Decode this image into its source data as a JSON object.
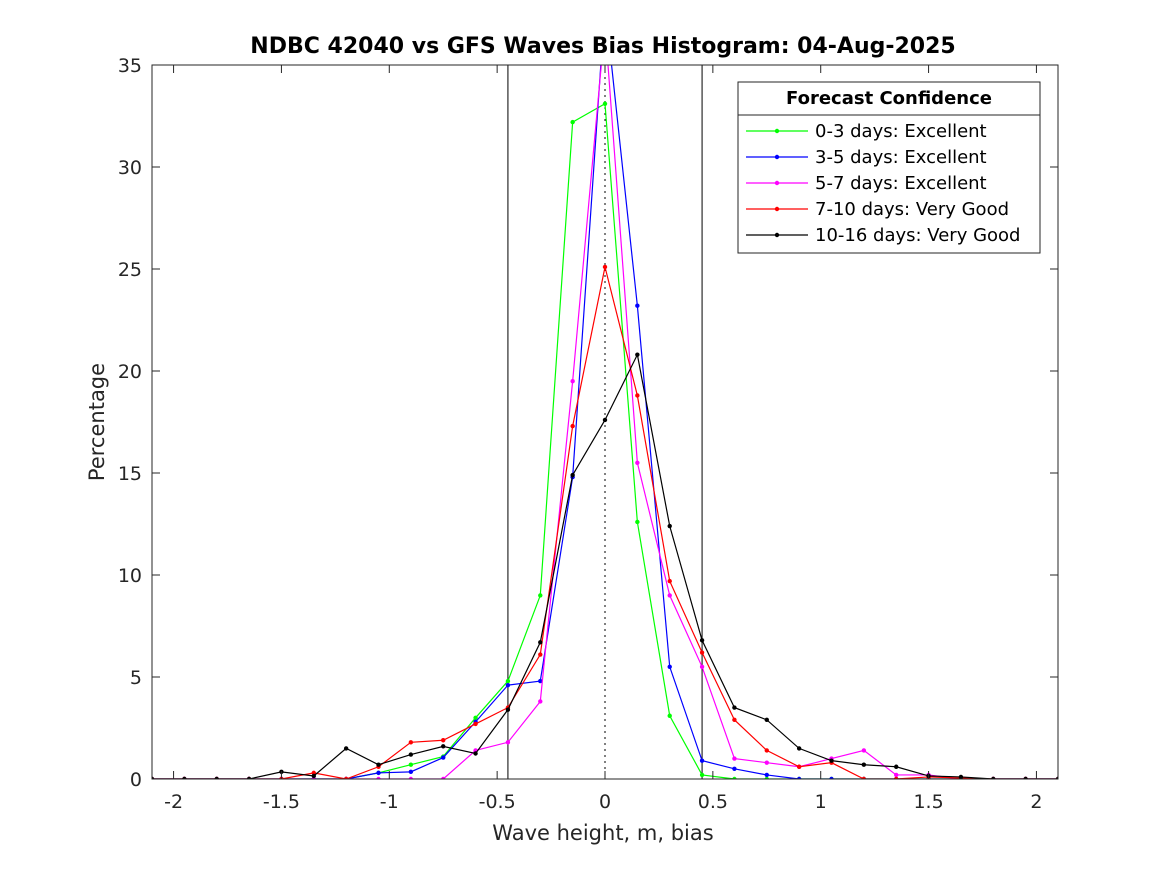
{
  "chart_data": {
    "type": "line",
    "title": "NDBC 42040 vs GFS Waves Bias Histogram: 04-Aug-2025",
    "xlabel": "Wave height, m, bias",
    "ylabel": "Percentage",
    "xlim": [
      -2.1,
      2.1
    ],
    "ylim": [
      0,
      35
    ],
    "xticks": [
      -2,
      -1.5,
      -1,
      -0.5,
      0,
      0.5,
      1,
      1.5,
      2
    ],
    "xtick_labels": [
      "-2",
      "-1.5",
      "-1",
      "-0.5",
      "0",
      "0.5",
      "1",
      "1.5",
      "2"
    ],
    "yticks": [
      0,
      5,
      10,
      15,
      20,
      25,
      30,
      35
    ],
    "ytick_labels": [
      "0",
      "5",
      "10",
      "15",
      "20",
      "25",
      "30",
      "35"
    ],
    "vlines": [
      -0.45,
      0.45
    ],
    "zero_line": 0,
    "grid": false,
    "legend": {
      "title": "Forecast Confidence",
      "placement": "top-right"
    },
    "x": [
      -2.1,
      -1.95,
      -1.8,
      -1.65,
      -1.5,
      -1.35,
      -1.2,
      -1.05,
      -0.9,
      -0.75,
      -0.6,
      -0.45,
      -0.3,
      -0.15,
      0,
      0.15,
      0.3,
      0.45,
      0.6,
      0.75,
      0.9,
      1.05,
      1.2,
      1.35,
      1.5,
      1.65,
      1.8,
      1.95,
      2.1
    ],
    "series": [
      {
        "name": "0-3 days: Excellent",
        "color": "#00ff00",
        "values": [
          0,
          0,
          0,
          0,
          0,
          0,
          0,
          0.3,
          0.7,
          1.1,
          3.0,
          4.8,
          9.0,
          32.2,
          33.1,
          12.6,
          3.1,
          0.2,
          0,
          0,
          0,
          0,
          0,
          0,
          0,
          0,
          0,
          0,
          0
        ]
      },
      {
        "name": "3-5 days: Excellent",
        "color": "#0000ff",
        "values": [
          0,
          0,
          0,
          0,
          0,
          0,
          0,
          0.3,
          0.35,
          1.05,
          2.8,
          4.6,
          4.8,
          14.8,
          38.0,
          23.2,
          5.5,
          0.9,
          0.5,
          0.2,
          0,
          0,
          0,
          0,
          0,
          0,
          0,
          0,
          0
        ]
      },
      {
        "name": "5-7 days: Excellent",
        "color": "#ff00ff",
        "values": [
          0,
          0,
          0,
          0,
          0,
          0,
          0,
          0,
          0,
          0,
          1.4,
          1.8,
          3.8,
          19.5,
          37.0,
          15.5,
          9.0,
          5.5,
          1.0,
          0.8,
          0.6,
          1.0,
          1.4,
          0.2,
          0.2,
          0,
          0,
          0,
          0
        ]
      },
      {
        "name": "7-10 days: Very Good",
        "color": "#ff0000",
        "values": [
          0,
          0,
          0,
          0,
          0,
          0.3,
          0,
          0.6,
          1.8,
          1.9,
          2.7,
          3.5,
          6.1,
          17.3,
          25.1,
          18.8,
          9.7,
          6.2,
          2.9,
          1.4,
          0.6,
          0.8,
          0,
          0,
          0.1,
          0.05,
          0,
          0,
          0
        ]
      },
      {
        "name": "10-16 days: Very Good",
        "color": "#000000",
        "values": [
          0,
          0,
          0,
          0,
          0.35,
          0.15,
          1.5,
          0.7,
          1.2,
          1.6,
          1.25,
          3.4,
          6.7,
          14.9,
          17.6,
          20.8,
          12.4,
          6.8,
          3.5,
          2.9,
          1.5,
          0.9,
          0.7,
          0.6,
          0.15,
          0.1,
          0,
          0,
          0
        ]
      }
    ]
  }
}
